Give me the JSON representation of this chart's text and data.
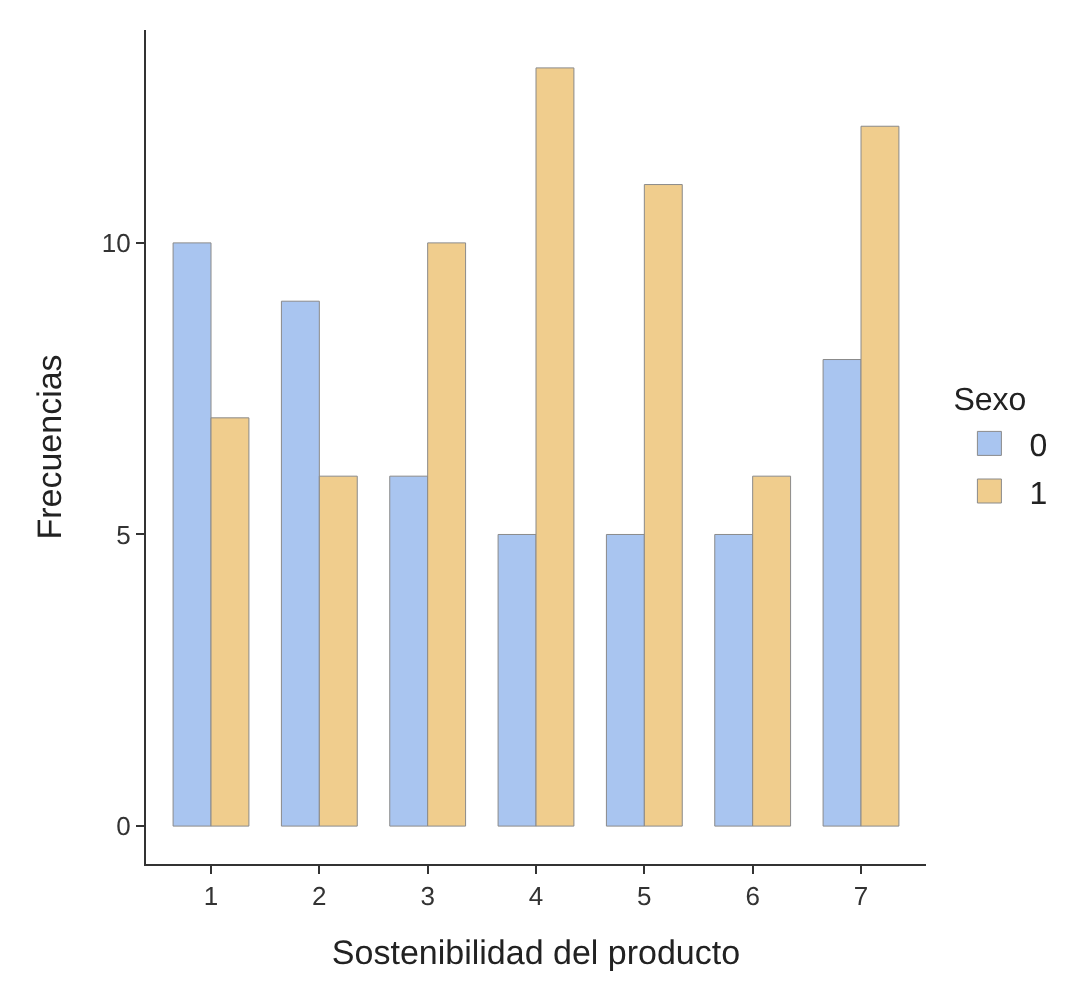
{
  "chart_data": {
    "type": "bar",
    "xlabel": "Sostenibilidad del producto",
    "ylabel": "Frecuencias",
    "legend_title": "Sexo",
    "legend": "right",
    "grid": false,
    "categories": [
      "1",
      "2",
      "3",
      "4",
      "5",
      "6",
      "7"
    ],
    "series": [
      {
        "name": "0",
        "color": "#a9c5f0",
        "values": [
          10,
          9,
          6,
          5,
          5,
          5,
          8
        ]
      },
      {
        "name": "1",
        "color": "#f0cd8d",
        "values": [
          7,
          6,
          10,
          13,
          11,
          6,
          12
        ]
      }
    ],
    "ylim": [
      -0.65,
      13.65
    ],
    "yticks": [
      0,
      5,
      10
    ]
  }
}
